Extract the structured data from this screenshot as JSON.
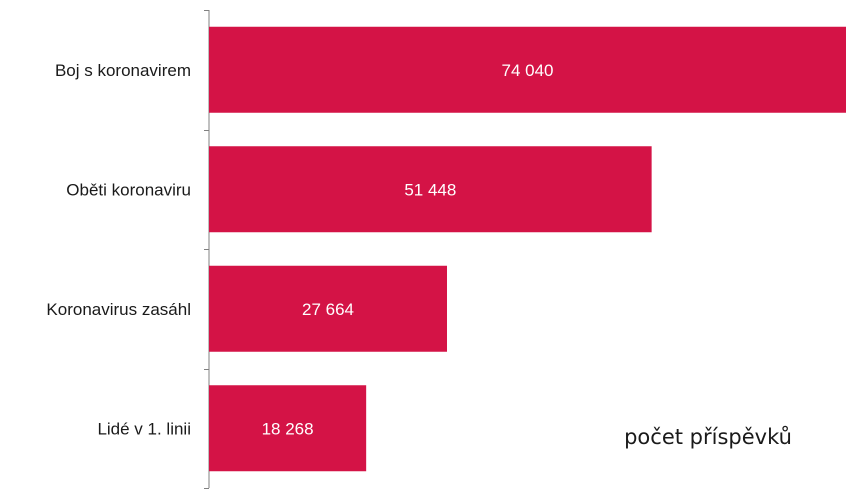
{
  "chart_data": {
    "type": "bar",
    "orientation": "horizontal",
    "categories": [
      "Boj s koronavirem",
      "Oběti koronaviru",
      "Koronavirus zasáhl",
      "Lidé v 1. linii"
    ],
    "values": [
      74040,
      51448,
      27664,
      18268
    ],
    "value_labels": [
      "74 040",
      "51 448",
      "27 664",
      "18 268"
    ],
    "title": "",
    "xlabel": "",
    "ylabel": "",
    "xlim": [
      0,
      74040
    ],
    "grid": false,
    "legend_text": "počet příspěvků",
    "legend_position": "bottom-right",
    "bar_color": "#D41346",
    "label_color": "#ffffff"
  }
}
